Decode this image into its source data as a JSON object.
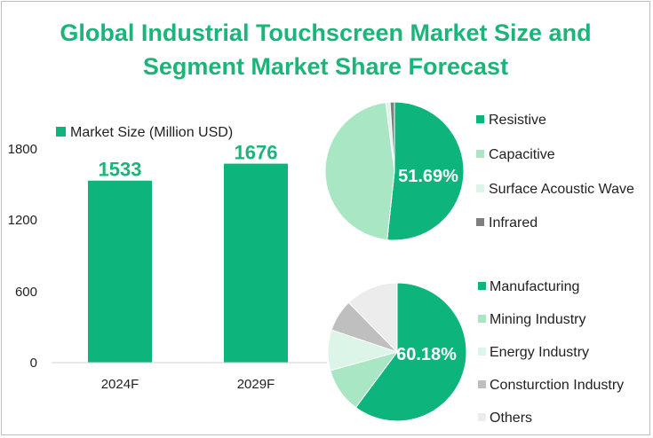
{
  "title_line1": "Global Industrial Touchscreen Market Size and",
  "title_line2": "Segment Market Share Forecast",
  "colors": {
    "title": "#1bb57a",
    "bar": "#0db47c",
    "pie_main": "#0db47c",
    "pie_light_green": "#a8e6c4",
    "pie_pale_green": "#dcf5e8",
    "pie_gray": "#bfbfbf",
    "pie_dark_gray": "#7f7f7f",
    "pie_light_gray": "#ececec"
  },
  "chart_data": [
    {
      "type": "bar",
      "legend": "Market Size (Million USD)",
      "categories": [
        "2024F",
        "2029F"
      ],
      "values": [
        1533,
        1676
      ],
      "data_labels": [
        "1533",
        "1676"
      ],
      "yticks": [
        "0",
        "600",
        "1200",
        "1800"
      ],
      "ylim": [
        0,
        1800
      ],
      "grid": false,
      "legend_position": "top-left"
    },
    {
      "type": "pie",
      "labels": [
        "Resistive",
        "Capacitive",
        "Surface Acoustic Wave",
        "Infrared"
      ],
      "values": [
        51.69,
        46.3,
        1.0,
        1.01
      ],
      "shown_label": "51.69%",
      "legend_position": "right"
    },
    {
      "type": "pie",
      "labels": [
        "Manufacturing",
        "Mining Industry",
        "Energy Industry",
        "Consturction Industry",
        "Others"
      ],
      "values": [
        60.18,
        10.5,
        9.5,
        7.5,
        12.32
      ],
      "shown_label": "60.18%",
      "legend_position": "right"
    }
  ]
}
